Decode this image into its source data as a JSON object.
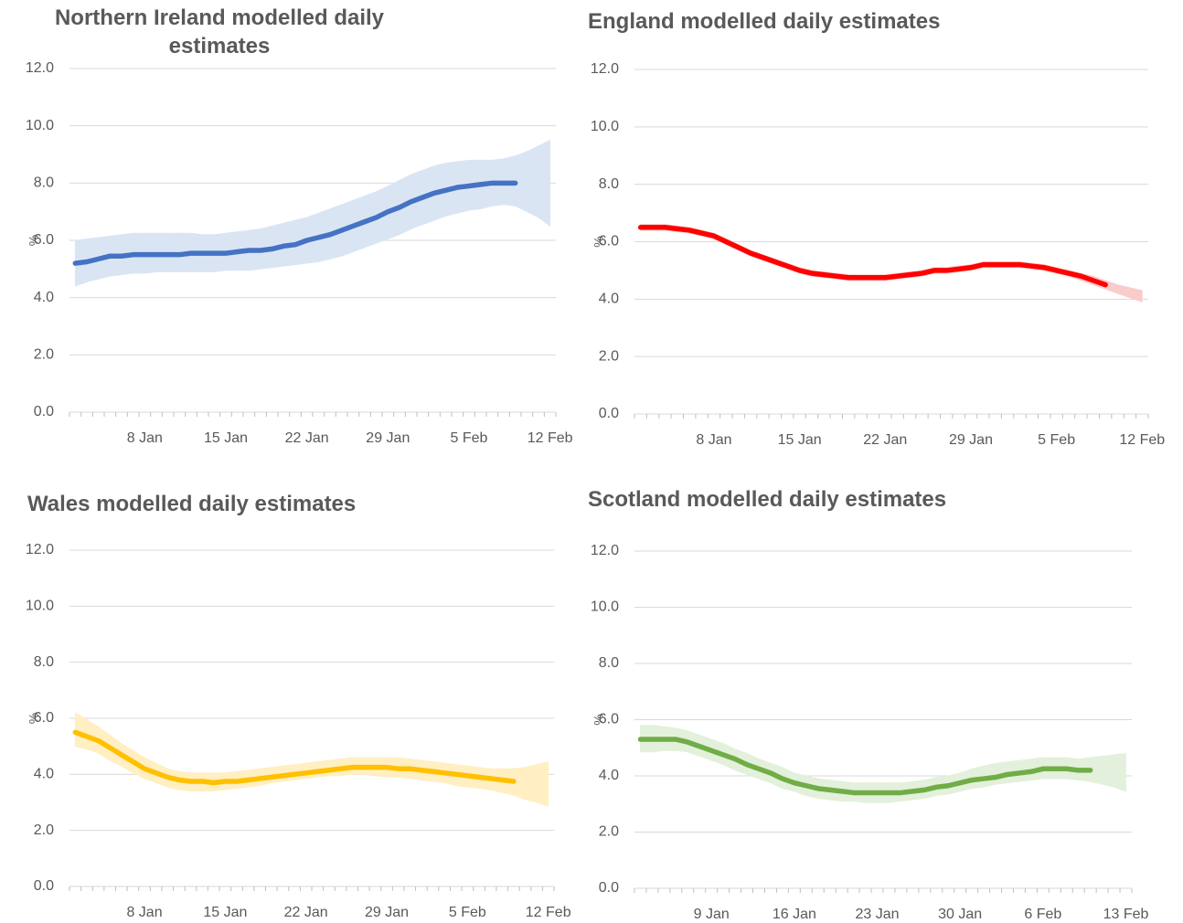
{
  "chart_data": [
    {
      "type": "line",
      "title": "Northern Ireland modelled daily estimates",
      "y_label": "%",
      "categories": [
        null,
        null,
        null,
        null,
        null,
        null,
        "8 Jan",
        null,
        null,
        null,
        null,
        null,
        null,
        "15 Jan",
        null,
        null,
        null,
        null,
        null,
        null,
        "22 Jan",
        null,
        null,
        null,
        null,
        null,
        null,
        "29 Jan",
        null,
        null,
        null,
        null,
        null,
        null,
        "5 Feb",
        null,
        null,
        null,
        null,
        null,
        null,
        "12 Feb"
      ],
      "series": [
        {
          "color": "#4472c4",
          "values": [
            5.2,
            5.25,
            5.35,
            5.45,
            5.45,
            5.5,
            5.5,
            5.5,
            5.5,
            5.5,
            5.55,
            5.55,
            5.55,
            5.55,
            5.6,
            5.65,
            5.65,
            5.7,
            5.8,
            5.85,
            6.0,
            6.1,
            6.2,
            6.35,
            6.5,
            6.65,
            6.8,
            7.0,
            7.15,
            7.35,
            7.5,
            7.65,
            7.75,
            7.85,
            7.9,
            7.95,
            8.0,
            8.0,
            8.0,
            null,
            null,
            null
          ]
        }
      ],
      "band": {
        "color": "#dae5f4",
        "lower": [
          4.4,
          4.55,
          4.65,
          4.75,
          4.8,
          4.85,
          4.85,
          4.9,
          4.9,
          4.9,
          4.9,
          4.9,
          4.9,
          4.95,
          4.95,
          4.95,
          5.0,
          5.05,
          5.1,
          5.15,
          5.2,
          5.25,
          5.35,
          5.45,
          5.6,
          5.75,
          5.9,
          6.05,
          6.2,
          6.4,
          6.55,
          6.7,
          6.85,
          6.95,
          7.05,
          7.1,
          7.2,
          7.25,
          7.2,
          7.0,
          6.8,
          6.5
        ],
        "upper": [
          6.0,
          6.05,
          6.1,
          6.15,
          6.2,
          6.25,
          6.25,
          6.25,
          6.25,
          6.25,
          6.25,
          6.2,
          6.2,
          6.25,
          6.3,
          6.35,
          6.4,
          6.5,
          6.6,
          6.7,
          6.8,
          6.95,
          7.1,
          7.25,
          7.4,
          7.55,
          7.7,
          7.9,
          8.1,
          8.3,
          8.45,
          8.6,
          8.7,
          8.75,
          8.8,
          8.8,
          8.8,
          8.85,
          8.95,
          9.1,
          9.3,
          9.5
        ]
      },
      "ylim": [
        0,
        12
      ],
      "yticks": [
        {
          "value": 0,
          "label": "0.0"
        },
        {
          "value": 2,
          "label": "2.0"
        },
        {
          "value": 4,
          "label": "4.0"
        },
        {
          "value": 6,
          "label": "6.0"
        },
        {
          "value": 8,
          "label": "8.0"
        },
        {
          "value": 10,
          "label": "10.0"
        },
        {
          "value": 12,
          "label": "12.0"
        }
      ],
      "grid": true
    },
    {
      "type": "line",
      "title": "England modelled daily estimates",
      "y_label": "%",
      "categories": [
        null,
        null,
        null,
        null,
        null,
        null,
        "8 Jan",
        null,
        null,
        null,
        null,
        null,
        null,
        "15 Jan",
        null,
        null,
        null,
        null,
        null,
        null,
        "22 Jan",
        null,
        null,
        null,
        null,
        null,
        null,
        "29 Jan",
        null,
        null,
        null,
        null,
        null,
        null,
        "5 Feb",
        null,
        null,
        null,
        null,
        null,
        null,
        "12 Feb"
      ],
      "series": [
        {
          "color": "#ff0000",
          "values": [
            6.5,
            6.5,
            6.5,
            6.45,
            6.4,
            6.3,
            6.2,
            6.0,
            5.8,
            5.6,
            5.45,
            5.3,
            5.15,
            5.0,
            4.9,
            4.85,
            4.8,
            4.75,
            4.75,
            4.75,
            4.75,
            4.8,
            4.85,
            4.9,
            5.0,
            5.0,
            5.05,
            5.1,
            5.2,
            5.2,
            5.2,
            5.2,
            5.15,
            5.1,
            5.0,
            4.9,
            4.8,
            4.65,
            4.5,
            null,
            null,
            null
          ]
        }
      ],
      "band": {
        "color": "#f9cccc",
        "lower": [
          6.4,
          6.4,
          6.4,
          6.35,
          6.3,
          6.2,
          6.1,
          5.9,
          5.7,
          5.5,
          5.35,
          5.2,
          5.05,
          4.9,
          4.8,
          4.75,
          4.7,
          4.65,
          4.65,
          4.65,
          4.65,
          4.7,
          4.75,
          4.8,
          4.9,
          4.9,
          4.95,
          5.0,
          5.1,
          5.1,
          5.1,
          5.1,
          5.05,
          5.0,
          4.9,
          4.8,
          4.65,
          4.5,
          4.35,
          4.2,
          4.05,
          3.9
        ],
        "upper": [
          6.6,
          6.6,
          6.6,
          6.55,
          6.5,
          6.4,
          6.3,
          6.1,
          5.9,
          5.7,
          5.55,
          5.4,
          5.25,
          5.1,
          5.0,
          4.95,
          4.9,
          4.85,
          4.85,
          4.85,
          4.85,
          4.9,
          4.95,
          5.0,
          5.1,
          5.1,
          5.15,
          5.2,
          5.3,
          5.3,
          5.3,
          5.3,
          5.25,
          5.2,
          5.1,
          5.0,
          4.9,
          4.8,
          4.65,
          4.5,
          4.4,
          4.3
        ]
      },
      "ylim": [
        0,
        12
      ],
      "yticks": [
        {
          "value": 0,
          "label": "0.0"
        },
        {
          "value": 2,
          "label": "2.0"
        },
        {
          "value": 4,
          "label": "4.0"
        },
        {
          "value": 6,
          "label": "6.0"
        },
        {
          "value": 8,
          "label": "8.0"
        },
        {
          "value": 10,
          "label": "10.0"
        },
        {
          "value": 12,
          "label": "12.0"
        }
      ],
      "grid": true
    },
    {
      "type": "line",
      "title": "Wales modelled daily estimates",
      "y_label": "%",
      "categories": [
        null,
        null,
        null,
        null,
        null,
        null,
        "8 Jan",
        null,
        null,
        null,
        null,
        null,
        null,
        "15 Jan",
        null,
        null,
        null,
        null,
        null,
        null,
        "22 Jan",
        null,
        null,
        null,
        null,
        null,
        null,
        "29 Jan",
        null,
        null,
        null,
        null,
        null,
        null,
        "5 Feb",
        null,
        null,
        null,
        null,
        null,
        null,
        "12 Feb"
      ],
      "series": [
        {
          "color": "#ffc000",
          "values": [
            5.5,
            5.35,
            5.2,
            4.95,
            4.7,
            4.45,
            4.2,
            4.05,
            3.9,
            3.8,
            3.75,
            3.75,
            3.7,
            3.75,
            3.75,
            3.8,
            3.85,
            3.9,
            3.95,
            4.0,
            4.05,
            4.1,
            4.15,
            4.2,
            4.25,
            4.25,
            4.25,
            4.25,
            4.2,
            4.2,
            4.15,
            4.1,
            4.05,
            4.0,
            3.95,
            3.9,
            3.85,
            3.8,
            3.75,
            null,
            null,
            null
          ]
        }
      ],
      "band": {
        "color": "#ffefc2",
        "lower": [
          5.0,
          4.9,
          4.75,
          4.5,
          4.3,
          4.05,
          3.85,
          3.7,
          3.55,
          3.45,
          3.4,
          3.4,
          3.4,
          3.45,
          3.5,
          3.55,
          3.6,
          3.7,
          3.75,
          3.8,
          3.85,
          3.9,
          3.95,
          3.95,
          4.0,
          4.0,
          3.95,
          3.9,
          3.9,
          3.85,
          3.8,
          3.75,
          3.7,
          3.6,
          3.55,
          3.5,
          3.45,
          3.35,
          3.25,
          3.1,
          3.0,
          2.85
        ],
        "upper": [
          6.2,
          5.95,
          5.7,
          5.4,
          5.1,
          4.85,
          4.6,
          4.4,
          4.2,
          4.1,
          4.05,
          4.05,
          4.05,
          4.05,
          4.1,
          4.15,
          4.2,
          4.25,
          4.3,
          4.35,
          4.4,
          4.45,
          4.5,
          4.55,
          4.6,
          4.6,
          4.6,
          4.6,
          4.6,
          4.55,
          4.5,
          4.45,
          4.4,
          4.35,
          4.3,
          4.25,
          4.2,
          4.2,
          4.2,
          4.25,
          4.35,
          4.45
        ]
      },
      "ylim": [
        0,
        12
      ],
      "yticks": [
        {
          "value": 0,
          "label": "0.0"
        },
        {
          "value": 2,
          "label": "2.0"
        },
        {
          "value": 4,
          "label": "4.0"
        },
        {
          "value": 6,
          "label": "6.0"
        },
        {
          "value": 8,
          "label": "8.0"
        },
        {
          "value": 10,
          "label": "10.0"
        },
        {
          "value": 12,
          "label": "12.0"
        }
      ],
      "grid": true
    },
    {
      "type": "line",
      "title": "Scotland modelled daily estimates",
      "y_label": "%",
      "categories": [
        null,
        null,
        null,
        null,
        null,
        null,
        "9 Jan",
        null,
        null,
        null,
        null,
        null,
        null,
        "16 Jan",
        null,
        null,
        null,
        null,
        null,
        null,
        "23 Jan",
        null,
        null,
        null,
        null,
        null,
        null,
        "30 Jan",
        null,
        null,
        null,
        null,
        null,
        null,
        "6 Feb",
        null,
        null,
        null,
        null,
        null,
        null,
        "13 Feb"
      ],
      "series": [
        {
          "color": "#70ad47",
          "values": [
            5.3,
            5.3,
            5.3,
            5.3,
            5.2,
            5.05,
            4.9,
            4.75,
            4.6,
            4.4,
            4.25,
            4.1,
            3.9,
            3.75,
            3.65,
            3.55,
            3.5,
            3.45,
            3.4,
            3.4,
            3.4,
            3.4,
            3.4,
            3.45,
            3.5,
            3.6,
            3.65,
            3.75,
            3.85,
            3.9,
            3.95,
            4.05,
            4.1,
            4.15,
            4.25,
            4.25,
            4.25,
            4.2,
            4.2,
            null,
            null,
            null
          ]
        }
      ],
      "band": {
        "color": "#e3f0db",
        "lower": [
          4.85,
          4.85,
          4.9,
          4.9,
          4.85,
          4.7,
          4.55,
          4.4,
          4.2,
          4.05,
          3.9,
          3.75,
          3.55,
          3.45,
          3.3,
          3.2,
          3.15,
          3.1,
          3.1,
          3.05,
          3.05,
          3.05,
          3.1,
          3.15,
          3.2,
          3.3,
          3.35,
          3.45,
          3.55,
          3.6,
          3.7,
          3.75,
          3.8,
          3.85,
          3.9,
          3.9,
          3.9,
          3.85,
          3.8,
          3.7,
          3.6,
          3.45
        ],
        "upper": [
          5.8,
          5.8,
          5.75,
          5.7,
          5.6,
          5.45,
          5.3,
          5.15,
          4.95,
          4.8,
          4.6,
          4.45,
          4.3,
          4.1,
          4.0,
          3.9,
          3.85,
          3.8,
          3.75,
          3.75,
          3.75,
          3.75,
          3.75,
          3.8,
          3.85,
          3.95,
          4.0,
          4.1,
          4.25,
          4.35,
          4.45,
          4.5,
          4.55,
          4.6,
          4.65,
          4.65,
          4.65,
          4.6,
          4.65,
          4.7,
          4.75,
          4.8
        ]
      },
      "ylim": [
        0,
        12
      ],
      "yticks": [
        {
          "value": 0,
          "label": "0.0"
        },
        {
          "value": 2,
          "label": "2.0"
        },
        {
          "value": 4,
          "label": "4.0"
        },
        {
          "value": 6,
          "label": "6.0"
        },
        {
          "value": 8,
          "label": "8.0"
        },
        {
          "value": 10,
          "label": "10.0"
        },
        {
          "value": 12,
          "label": "12.0"
        }
      ],
      "grid": true
    }
  ]
}
